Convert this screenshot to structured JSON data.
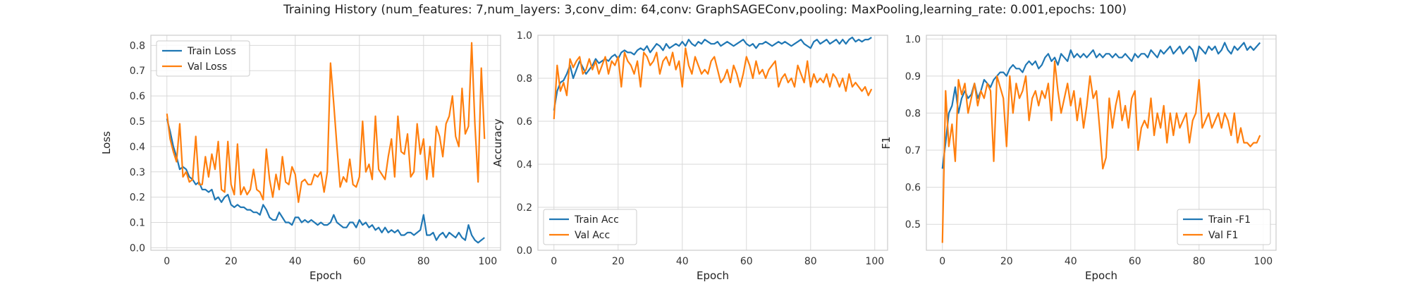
{
  "figure": {
    "title": "Training History (num_features: 7,num_layers: 3,conv_dim: 64,conv: GraphSAGEConv,pooling: MaxPooling,learning_rate: 0.001,epochs: 100)"
  },
  "colors": {
    "train": "#1f77b4",
    "val": "#ff7f0e",
    "grid": "#d9d9d9",
    "spine": "#cccccc"
  },
  "chart_data": [
    {
      "type": "line",
      "xlabel": "Epoch",
      "ylabel": "Loss",
      "xlim": [
        -5,
        104
      ],
      "ylim": [
        -0.01,
        0.84
      ],
      "xticks": [
        0,
        20,
        40,
        60,
        80,
        100
      ],
      "yticks": [
        0.0,
        0.1,
        0.2,
        0.3,
        0.4,
        0.5,
        0.6,
        0.7,
        0.8
      ],
      "ytick_labels": [
        "0.0",
        "0.1",
        "0.2",
        "0.3",
        "0.4",
        "0.5",
        "0.6",
        "0.7",
        "0.8"
      ],
      "grid": true,
      "legend": "upper-left",
      "series": [
        {
          "name": "Train Loss",
          "color": "#1f77b4",
          "values": [
            0.51,
            0.46,
            0.4,
            0.36,
            0.31,
            0.32,
            0.31,
            0.28,
            0.27,
            0.25,
            0.26,
            0.23,
            0.23,
            0.22,
            0.23,
            0.19,
            0.2,
            0.18,
            0.2,
            0.21,
            0.17,
            0.16,
            0.17,
            0.16,
            0.16,
            0.15,
            0.15,
            0.14,
            0.14,
            0.13,
            0.17,
            0.15,
            0.12,
            0.11,
            0.11,
            0.14,
            0.12,
            0.1,
            0.1,
            0.09,
            0.12,
            0.12,
            0.1,
            0.11,
            0.1,
            0.11,
            0.1,
            0.09,
            0.1,
            0.09,
            0.09,
            0.1,
            0.13,
            0.1,
            0.09,
            0.08,
            0.08,
            0.1,
            0.1,
            0.08,
            0.11,
            0.09,
            0.1,
            0.08,
            0.09,
            0.07,
            0.08,
            0.06,
            0.08,
            0.06,
            0.07,
            0.06,
            0.07,
            0.05,
            0.05,
            0.06,
            0.06,
            0.05,
            0.06,
            0.07,
            0.13,
            0.05,
            0.05,
            0.06,
            0.03,
            0.05,
            0.06,
            0.04,
            0.06,
            0.05,
            0.04,
            0.06,
            0.04,
            0.03,
            0.09,
            0.05,
            0.03,
            0.02,
            0.03,
            0.04
          ]
        },
        {
          "name": "Val Loss",
          "color": "#ff7f0e",
          "values": [
            0.53,
            0.43,
            0.38,
            0.34,
            0.49,
            0.28,
            0.3,
            0.26,
            0.27,
            0.44,
            0.25,
            0.25,
            0.36,
            0.28,
            0.37,
            0.31,
            0.42,
            0.23,
            0.22,
            0.42,
            0.25,
            0.21,
            0.41,
            0.21,
            0.24,
            0.21,
            0.23,
            0.31,
            0.23,
            0.22,
            0.19,
            0.39,
            0.27,
            0.2,
            0.29,
            0.23,
            0.36,
            0.26,
            0.25,
            0.32,
            0.29,
            0.18,
            0.26,
            0.27,
            0.25,
            0.25,
            0.29,
            0.28,
            0.3,
            0.22,
            0.3,
            0.73,
            0.57,
            0.4,
            0.24,
            0.28,
            0.26,
            0.35,
            0.25,
            0.24,
            0.28,
            0.5,
            0.3,
            0.33,
            0.27,
            0.52,
            0.31,
            0.29,
            0.27,
            0.36,
            0.43,
            0.28,
            0.52,
            0.38,
            0.37,
            0.45,
            0.28,
            0.3,
            0.49,
            0.37,
            0.43,
            0.27,
            0.4,
            0.28,
            0.48,
            0.44,
            0.36,
            0.49,
            0.52,
            0.6,
            0.44,
            0.4,
            0.63,
            0.45,
            0.48,
            0.81,
            0.49,
            0.26,
            0.71,
            0.43
          ]
        }
      ]
    },
    {
      "type": "line",
      "xlabel": "Epoch",
      "ylabel": "Accuracy",
      "xlim": [
        -5,
        104
      ],
      "ylim": [
        0,
        1.0
      ],
      "xticks": [
        0,
        20,
        40,
        60,
        80,
        100
      ],
      "yticks": [
        0.0,
        0.2,
        0.4,
        0.6,
        0.8,
        1.0
      ],
      "ytick_labels": [
        "0.0",
        "0.2",
        "0.4",
        "0.6",
        "0.8",
        "1.0"
      ],
      "grid": true,
      "legend": "lower-left",
      "series": [
        {
          "name": "Train Acc",
          "color": "#1f77b4",
          "values": [
            0.65,
            0.74,
            0.78,
            0.79,
            0.82,
            0.86,
            0.8,
            0.84,
            0.88,
            0.85,
            0.82,
            0.84,
            0.86,
            0.89,
            0.87,
            0.88,
            0.89,
            0.88,
            0.9,
            0.91,
            0.89,
            0.92,
            0.93,
            0.92,
            0.92,
            0.91,
            0.93,
            0.94,
            0.93,
            0.95,
            0.92,
            0.94,
            0.96,
            0.95,
            0.93,
            0.96,
            0.94,
            0.95,
            0.96,
            0.95,
            0.97,
            0.95,
            0.98,
            0.96,
            0.95,
            0.97,
            0.96,
            0.98,
            0.97,
            0.96,
            0.96,
            0.97,
            0.95,
            0.96,
            0.97,
            0.96,
            0.95,
            0.96,
            0.97,
            0.98,
            0.96,
            0.95,
            0.96,
            0.94,
            0.96,
            0.96,
            0.97,
            0.96,
            0.95,
            0.96,
            0.97,
            0.96,
            0.97,
            0.96,
            0.95,
            0.96,
            0.97,
            0.98,
            0.96,
            0.95,
            0.94,
            0.97,
            0.98,
            0.96,
            0.97,
            0.98,
            0.96,
            0.97,
            0.98,
            0.96,
            0.98,
            0.96,
            0.98,
            0.99,
            0.97,
            0.98,
            0.97,
            0.98,
            0.98,
            0.99
          ]
        },
        {
          "name": "Val Acc",
          "color": "#ff7f0e",
          "values": [
            0.61,
            0.86,
            0.74,
            0.78,
            0.72,
            0.89,
            0.85,
            0.88,
            0.9,
            0.82,
            0.84,
            0.89,
            0.84,
            0.88,
            0.82,
            0.86,
            0.9,
            0.82,
            0.88,
            0.86,
            0.9,
            0.76,
            0.92,
            0.88,
            0.86,
            0.82,
            0.88,
            0.76,
            0.92,
            0.9,
            0.86,
            0.88,
            0.92,
            0.82,
            0.88,
            0.9,
            0.86,
            0.92,
            0.84,
            0.88,
            0.76,
            0.94,
            0.86,
            0.82,
            0.9,
            0.86,
            0.82,
            0.84,
            0.82,
            0.88,
            0.9,
            0.84,
            0.78,
            0.8,
            0.84,
            0.78,
            0.86,
            0.82,
            0.76,
            0.82,
            0.9,
            0.86,
            0.8,
            0.88,
            0.82,
            0.84,
            0.8,
            0.84,
            0.86,
            0.88,
            0.76,
            0.8,
            0.82,
            0.78,
            0.8,
            0.76,
            0.86,
            0.82,
            0.78,
            0.88,
            0.76,
            0.82,
            0.78,
            0.8,
            0.78,
            0.82,
            0.76,
            0.82,
            0.8,
            0.76,
            0.8,
            0.74,
            0.82,
            0.76,
            0.78,
            0.76,
            0.74,
            0.76,
            0.72,
            0.75
          ]
        }
      ]
    },
    {
      "type": "line",
      "xlabel": "Epoch",
      "ylabel": "F1",
      "xlim": [
        -5,
        104
      ],
      "ylim": [
        0.43,
        1.01
      ],
      "xticks": [
        0,
        20,
        40,
        60,
        80,
        100
      ],
      "yticks": [
        0.5,
        0.6,
        0.7,
        0.8,
        0.9,
        1.0
      ],
      "ytick_labels": [
        "0.5",
        "0.6",
        "0.7",
        "0.8",
        "0.9",
        "1.0"
      ],
      "grid": true,
      "legend": "lower-right",
      "series": [
        {
          "name": "Train -F1",
          "color": "#1f77b4",
          "values": [
            0.65,
            0.72,
            0.8,
            0.82,
            0.87,
            0.8,
            0.84,
            0.86,
            0.84,
            0.85,
            0.88,
            0.84,
            0.86,
            0.89,
            0.88,
            0.87,
            0.89,
            0.9,
            0.91,
            0.91,
            0.9,
            0.92,
            0.93,
            0.92,
            0.92,
            0.91,
            0.93,
            0.94,
            0.93,
            0.94,
            0.92,
            0.93,
            0.95,
            0.96,
            0.94,
            0.95,
            0.93,
            0.96,
            0.95,
            0.94,
            0.97,
            0.95,
            0.96,
            0.95,
            0.96,
            0.95,
            0.96,
            0.97,
            0.95,
            0.96,
            0.95,
            0.96,
            0.96,
            0.95,
            0.96,
            0.95,
            0.95,
            0.96,
            0.95,
            0.94,
            0.96,
            0.95,
            0.96,
            0.96,
            0.95,
            0.97,
            0.96,
            0.95,
            0.97,
            0.96,
            0.97,
            0.98,
            0.96,
            0.97,
            0.98,
            0.96,
            0.97,
            0.98,
            0.97,
            0.94,
            0.98,
            0.97,
            0.96,
            0.98,
            0.97,
            0.98,
            0.96,
            0.97,
            0.99,
            0.97,
            0.96,
            0.98,
            0.97,
            0.98,
            0.99,
            0.97,
            0.98,
            0.97,
            0.98,
            0.99
          ]
        },
        {
          "name": "Val F1",
          "color": "#ff7f0e",
          "values": [
            0.45,
            0.86,
            0.71,
            0.77,
            0.67,
            0.89,
            0.85,
            0.88,
            0.8,
            0.84,
            0.88,
            0.82,
            0.86,
            0.84,
            0.88,
            0.86,
            0.67,
            0.9,
            0.87,
            0.84,
            0.71,
            0.9,
            0.8,
            0.88,
            0.84,
            0.86,
            0.9,
            0.78,
            0.84,
            0.86,
            0.82,
            0.86,
            0.84,
            0.88,
            0.78,
            0.94,
            0.86,
            0.8,
            0.84,
            0.88,
            0.82,
            0.86,
            0.78,
            0.84,
            0.76,
            0.82,
            0.9,
            0.84,
            0.86,
            0.76,
            0.65,
            0.68,
            0.84,
            0.76,
            0.82,
            0.86,
            0.78,
            0.82,
            0.76,
            0.84,
            0.86,
            0.7,
            0.76,
            0.78,
            0.76,
            0.84,
            0.74,
            0.8,
            0.76,
            0.82,
            0.72,
            0.8,
            0.74,
            0.8,
            0.76,
            0.78,
            0.8,
            0.72,
            0.78,
            0.8,
            0.89,
            0.76,
            0.78,
            0.8,
            0.76,
            0.78,
            0.8,
            0.76,
            0.8,
            0.78,
            0.74,
            0.8,
            0.72,
            0.76,
            0.72,
            0.72,
            0.71,
            0.72,
            0.72,
            0.74
          ]
        }
      ]
    }
  ]
}
